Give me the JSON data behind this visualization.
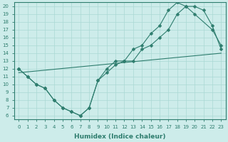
{
  "xlabel": "Humidex (Indice chaleur)",
  "background_color": "#cdecea",
  "grid_color": "#aad8d4",
  "line_color": "#2e7d6e",
  "xlim": [
    -0.5,
    23.5
  ],
  "ylim": [
    5.5,
    20.5
  ],
  "xticks": [
    0,
    1,
    2,
    3,
    4,
    5,
    6,
    7,
    8,
    9,
    10,
    11,
    12,
    13,
    14,
    15,
    16,
    17,
    18,
    19,
    20,
    21,
    22,
    23
  ],
  "yticks": [
    6,
    7,
    8,
    9,
    10,
    11,
    12,
    13,
    14,
    15,
    16,
    17,
    18,
    19,
    20
  ],
  "line1_x": [
    0,
    1,
    2,
    3,
    4,
    5,
    6,
    7,
    8,
    9,
    10,
    11,
    12,
    13,
    14,
    15,
    16,
    17,
    18,
    19,
    20,
    22,
    23
  ],
  "line1_y": [
    12,
    11,
    10,
    9.5,
    8,
    7,
    6.5,
    6,
    7,
    10.5,
    12,
    13,
    13,
    14.5,
    15,
    16.5,
    17.5,
    19.5,
    20.5,
    20,
    19,
    17,
    15
  ],
  "line2_x": [
    0,
    1,
    2,
    3,
    4,
    5,
    6,
    7,
    8,
    9,
    10,
    11,
    12,
    13,
    14,
    15,
    16,
    17,
    18,
    19,
    20,
    21,
    22,
    23
  ],
  "line2_y": [
    12,
    11,
    10,
    9.5,
    8,
    7,
    6.5,
    6,
    7,
    10.5,
    11.5,
    12.5,
    13,
    13,
    14.5,
    15,
    16,
    17,
    19,
    20,
    20,
    19.5,
    17.5,
    14.5
  ],
  "line3_x": [
    0,
    23
  ],
  "line3_y": [
    11.5,
    14
  ],
  "marker": "D",
  "markersize": 2.5,
  "tick_fontsize": 5.0,
  "xlabel_fontsize": 6.5
}
